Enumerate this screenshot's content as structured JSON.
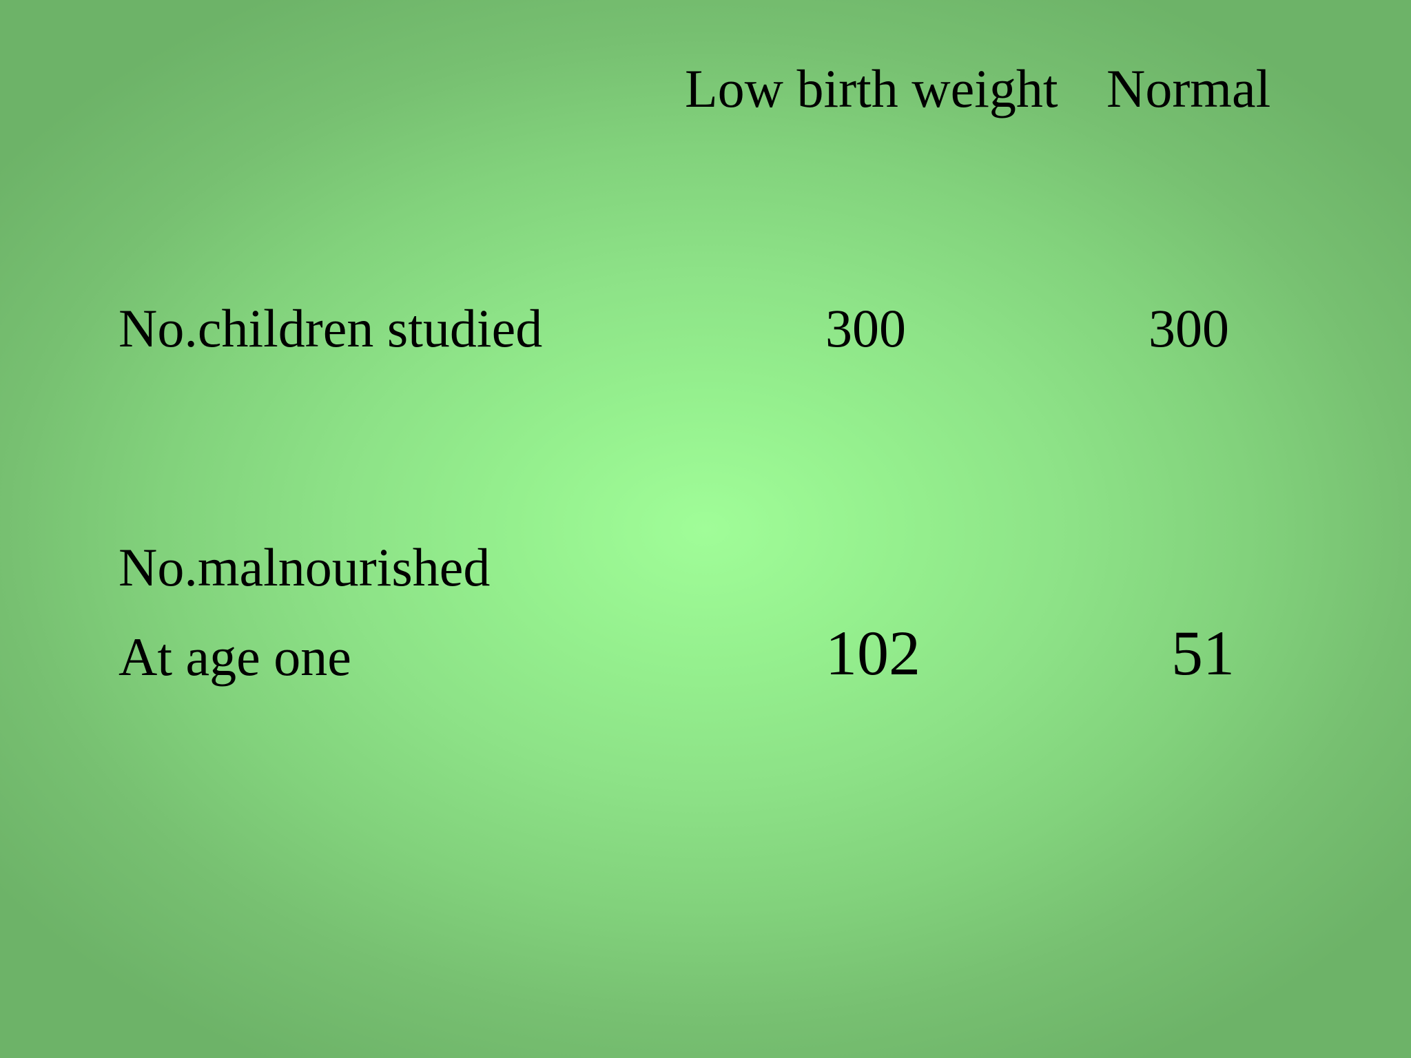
{
  "table": {
    "headers": {
      "low_birth_weight": "Low birth weight",
      "normal": "Normal"
    },
    "rows": [
      {
        "label_lines": [
          "No.children studied"
        ],
        "low_birth_weight": "300",
        "normal": "300"
      },
      {
        "label_lines": [
          "No.malnourished",
          "At age one"
        ],
        "low_birth_weight": "102",
        "normal": "51"
      }
    ]
  },
  "colors": {
    "background_center": "#a0fd98",
    "background_edge": "#6db368",
    "text": "#000000"
  }
}
